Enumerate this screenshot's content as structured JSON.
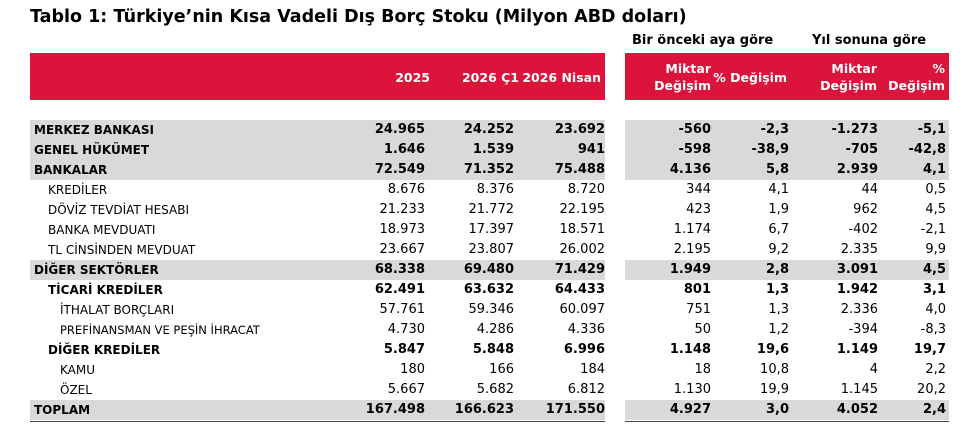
{
  "title": "Tablo 1: Türkiye’nin Kısa Vadeli Dış Borç Stoku (Milyon ABD doları)",
  "group_headers": [
    "Bir önceki aya göre",
    "Yıl sonuna göre"
  ],
  "col_headers": {
    "y2025": "2025",
    "q1_2026": "2026 Ç1",
    "apr_2026": "2026 Nisan",
    "mom_amount": [
      "Miktar",
      "Değişim"
    ],
    "mom_pct": "% Değişim",
    "ytd_amount": [
      "Miktar",
      "Değişim"
    ],
    "ytd_pct": [
      "%",
      "Değişim"
    ]
  },
  "rows": [
    {
      "label": "MERKEZ BANKASI",
      "values": [
        "24.965",
        "24.252",
        "23.692",
        "-560",
        "-2,3",
        "-1.273",
        "-5,1"
      ]
    },
    {
      "label": "GENEL HÜKÜMET",
      "values": [
        "1.646",
        "1.539",
        "941",
        "-598",
        "-38,9",
        "-705",
        "-42,8"
      ]
    },
    {
      "label": "BANKALAR",
      "values": [
        "72.549",
        "71.352",
        "75.488",
        "4.136",
        "5,8",
        "2.939",
        "4,1"
      ]
    },
    {
      "label": "KREDİLER",
      "values": [
        "8.676",
        "8.376",
        "8.720",
        "344",
        "4,1",
        "44",
        "0,5"
      ]
    },
    {
      "label": "DÖVİZ TEVDİAT HESABI",
      "values": [
        "21.233",
        "21.772",
        "22.195",
        "423",
        "1,9",
        "962",
        "4,5"
      ]
    },
    {
      "label": "BANKA MEVDUATI",
      "values": [
        "18.973",
        "17.397",
        "18.571",
        "1.174",
        "6,7",
        "-402",
        "-2,1"
      ]
    },
    {
      "label": "TL CİNSİNDEN MEVDUAT",
      "values": [
        "23.667",
        "23.807",
        "26.002",
        "2.195",
        "9,2",
        "2.335",
        "9,9"
      ]
    },
    {
      "label": "DİĞER SEKTÖRLER",
      "values": [
        "68.338",
        "69.480",
        "71.429",
        "1.949",
        "2,8",
        "3.091",
        "4,5"
      ]
    },
    {
      "label": "TİCARİ KREDİLER",
      "values": [
        "62.491",
        "63.632",
        "64.433",
        "801",
        "1,3",
        "1.942",
        "3,1"
      ]
    },
    {
      "label": "İTHALAT BORÇLARI",
      "values": [
        "57.761",
        "59.346",
        "60.097",
        "751",
        "1,3",
        "2.336",
        "4,0"
      ]
    },
    {
      "label": "PREFİNANSMAN VE PEŞİN İHRACAT",
      "values": [
        "4.730",
        "4.286",
        "4.336",
        "50",
        "1,2",
        "-394",
        "-8,3"
      ]
    },
    {
      "label": "DİĞER KREDİLER",
      "values": [
        "5.847",
        "5.848",
        "6.996",
        "1.148",
        "19,6",
        "1.149",
        "19,7"
      ]
    },
    {
      "label": "KAMU",
      "values": [
        "180",
        "166",
        "184",
        "18",
        "10,8",
        "4",
        "2,2"
      ]
    },
    {
      "label": "ÖZEL",
      "values": [
        "5.667",
        "5.682",
        "6.812",
        "1.130",
        "19,9",
        "1.145",
        "20,2"
      ]
    },
    {
      "label": "TOPLAM",
      "values": [
        "167.498",
        "166.623",
        "171.550",
        "4.927",
        "3,0",
        "4.052",
        "2,4"
      ]
    }
  ]
}
